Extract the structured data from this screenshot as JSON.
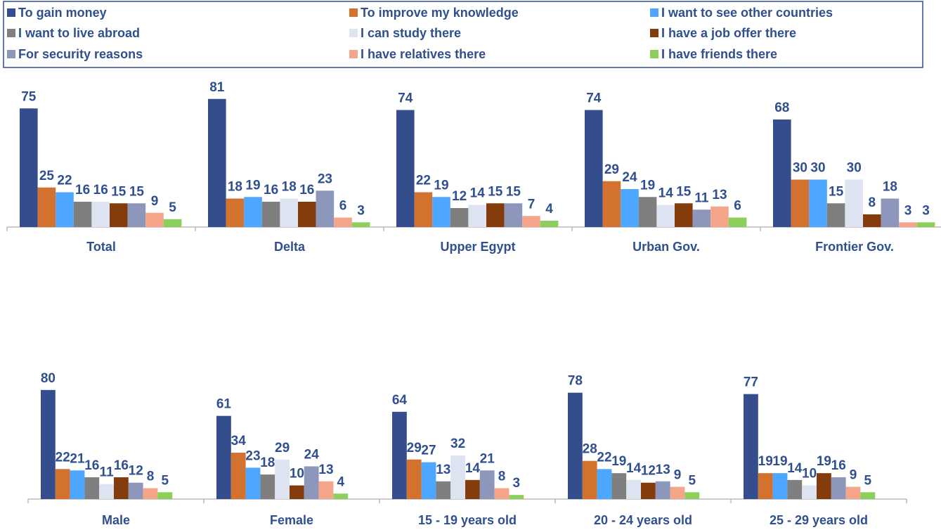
{
  "chart_data": {
    "type": "bar",
    "categories": [
      "Total",
      "Delta",
      "Upper Egypt",
      "Urban Gov.",
      "Frontier Gov.",
      "Male",
      "Female",
      "15 - 19 years old",
      "20 - 24 years old",
      "25 - 29 years old"
    ],
    "series": [
      {
        "name": "To gain money",
        "color": "#344d8c",
        "values": [
          75,
          81,
          74,
          74,
          68,
          80,
          61,
          64,
          78,
          77
        ]
      },
      {
        "name": "To improve my knowledge",
        "color": "#d2722e",
        "values": [
          25,
          18,
          22,
          29,
          30,
          22,
          34,
          29,
          28,
          19
        ]
      },
      {
        "name": "I want to see other countries",
        "color": "#4da6ff",
        "values": [
          22,
          19,
          19,
          24,
          30,
          21,
          23,
          27,
          22,
          19
        ]
      },
      {
        "name": "I want to live abroad",
        "color": "#7f7f7f",
        "values": [
          16,
          16,
          12,
          19,
          15,
          16,
          18,
          13,
          19,
          14
        ]
      },
      {
        "name": "I can study there",
        "color": "#dde3f1",
        "values": [
          16,
          18,
          14,
          14,
          30,
          11,
          29,
          32,
          14,
          10
        ]
      },
      {
        "name": "I have a job offer there",
        "color": "#843c0c",
        "values": [
          15,
          16,
          15,
          15,
          8,
          16,
          10,
          14,
          12,
          19
        ]
      },
      {
        "name": "For security reasons",
        "color": "#8d96bb",
        "values": [
          15,
          23,
          15,
          11,
          18,
          12,
          24,
          21,
          13,
          16
        ]
      },
      {
        "name": "I have relatives there",
        "color": "#f4a58a",
        "values": [
          9,
          6,
          7,
          13,
          3,
          8,
          13,
          8,
          9,
          9
        ]
      },
      {
        "name": "I have friends there",
        "color": "#8ccf5a",
        "values": [
          5,
          3,
          4,
          6,
          3,
          5,
          4,
          3,
          5,
          5
        ]
      }
    ],
    "legend": "top"
  }
}
